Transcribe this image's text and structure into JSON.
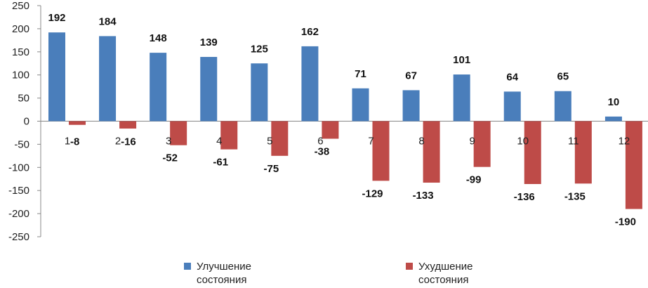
{
  "chart_data": {
    "type": "bar",
    "categories": [
      "1",
      "2",
      "3",
      "4",
      "5",
      "6",
      "7",
      "8",
      "9",
      "10",
      "11",
      "12"
    ],
    "series": [
      {
        "name": "Улучшение состояния",
        "color": "#4a7ebb",
        "values": [
          192,
          184,
          148,
          139,
          125,
          162,
          71,
          67,
          101,
          64,
          65,
          10
        ]
      },
      {
        "name": "Ухудшение состояния",
        "color": "#be4b48",
        "values": [
          -8,
          -16,
          -52,
          -61,
          -75,
          -38,
          -129,
          -133,
          -99,
          -136,
          -135,
          -190
        ]
      }
    ],
    "ylim": [
      -250,
      250
    ],
    "yticks": [
      250,
      200,
      150,
      100,
      50,
      0,
      -50,
      -100,
      -150,
      -200,
      -250
    ],
    "legend_position": "bottom",
    "grid": false
  }
}
